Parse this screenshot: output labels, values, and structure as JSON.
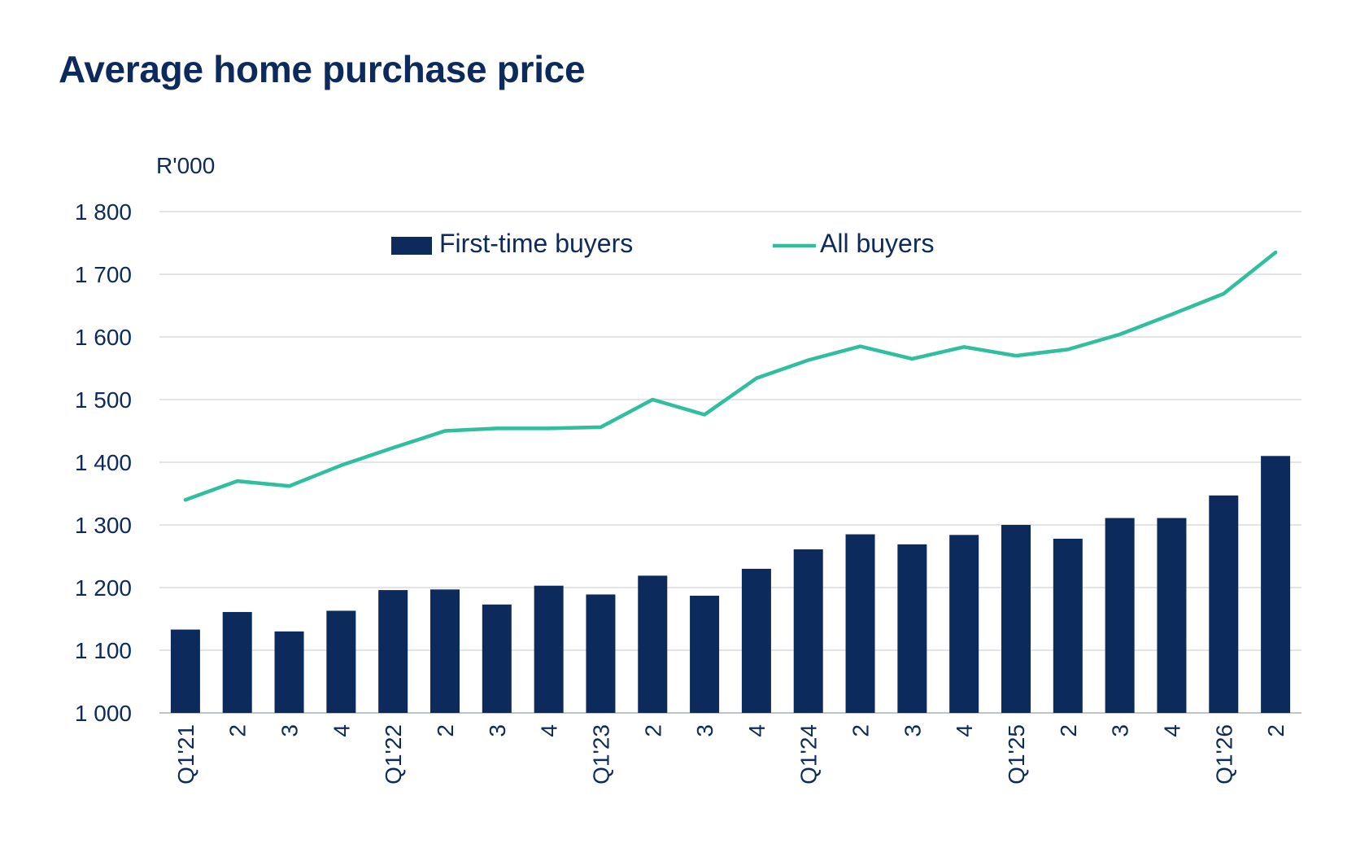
{
  "chart_data": {
    "type": "bar",
    "title": "Average home purchase price",
    "ylabel": "R'000",
    "xlabel": "",
    "ylim": [
      1000,
      1800
    ],
    "yticks": [
      "1 000",
      "1 100",
      "1 200",
      "1 300",
      "1 400",
      "1 500",
      "1 600",
      "1 700",
      "1 800"
    ],
    "grid": true,
    "legend_position": "top-center",
    "categories": [
      "Q1'21",
      "2",
      "3",
      "4",
      "Q1'22",
      "2",
      "3",
      "4",
      "Q1'23",
      "2",
      "3",
      "4",
      "Q1'24",
      "2",
      "3",
      "4",
      "Q1'25",
      "2",
      "3",
      "4",
      "Q1'26",
      "2"
    ],
    "series": [
      {
        "name": "First-time buyers",
        "type": "bar",
        "color": "#0c2a5b",
        "values": [
          1133,
          1161,
          1130,
          1163,
          1196,
          1197,
          1173,
          1203,
          1189,
          1219,
          1187,
          1230,
          1261,
          1285,
          1269,
          1284,
          1300,
          1278,
          1311,
          1311,
          1347,
          1410
        ]
      },
      {
        "name": "All buyers",
        "type": "line",
        "color": "#2fbf9f",
        "values": [
          1340,
          1370,
          1362,
          1395,
          1423,
          1450,
          1454,
          1454,
          1456,
          1500,
          1476,
          1534,
          1563,
          1585,
          1565,
          1584,
          1570,
          1580,
          1604,
          1636,
          1669,
          1735
        ]
      }
    ]
  }
}
